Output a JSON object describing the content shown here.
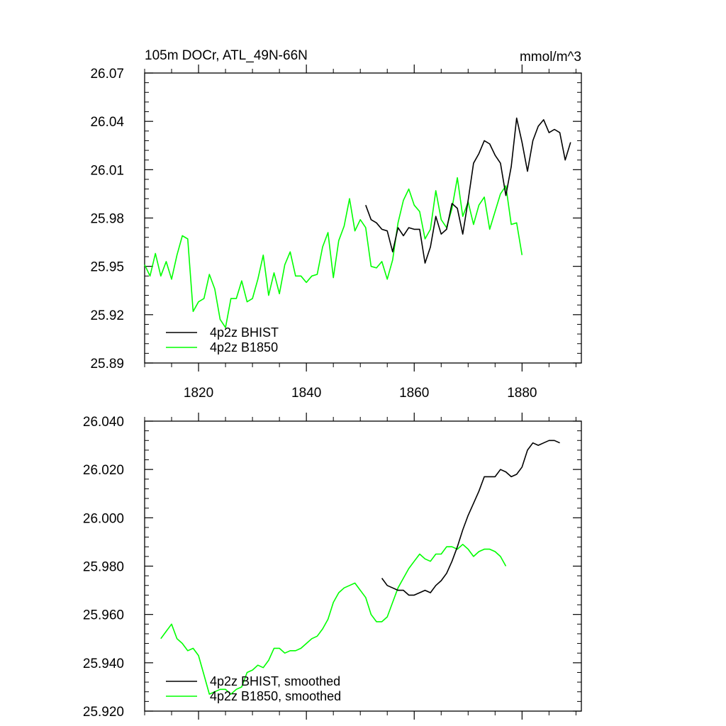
{
  "colors": {
    "bhist": "#000000",
    "b1850": "#00ff00"
  },
  "chart_data": [
    {
      "type": "line",
      "title": "105m DOCr, ATL_49N-66N",
      "units": "mmol/m^3",
      "xlim": [
        1810,
        1891
      ],
      "ylim": [
        25.89,
        26.07
      ],
      "yticks": [
        "25.89",
        "25.92",
        "25.95",
        "25.98",
        "26.01",
        "26.04",
        "26.07"
      ],
      "ytick_values": [
        25.89,
        25.92,
        25.95,
        25.98,
        26.01,
        26.04,
        26.07
      ],
      "xticks": [
        "1820",
        "1840",
        "1860",
        "1880"
      ],
      "xtick_values": [
        1820,
        1840,
        1860,
        1880
      ],
      "legend": [
        "4p2z BHIST",
        "4p2z B1850"
      ],
      "series": [
        {
          "name": "4p2z BHIST",
          "color": "bhist",
          "x": [
            1851,
            1852,
            1853,
            1854,
            1855,
            1856,
            1857,
            1858,
            1859,
            1860,
            1861,
            1862,
            1863,
            1864,
            1865,
            1866,
            1867,
            1868,
            1869,
            1870,
            1871,
            1872,
            1873,
            1874,
            1875,
            1876,
            1877,
            1878,
            1879,
            1880,
            1881,
            1882,
            1883,
            1884,
            1885,
            1886,
            1887,
            1888,
            1889
          ],
          "values": [
            25.988,
            25.979,
            25.977,
            25.973,
            25.972,
            25.959,
            25.974,
            25.969,
            25.974,
            25.973,
            25.973,
            25.952,
            25.962,
            25.981,
            25.97,
            25.973,
            25.989,
            25.986,
            25.97,
            25.991,
            26.014,
            26.02,
            26.028,
            26.026,
            26.019,
            26.014,
            25.994,
            26.012,
            26.042,
            26.027,
            26.009,
            26.028,
            26.037,
            26.041,
            26.033,
            26.035,
            26.033,
            26.016,
            26.027
          ]
        },
        {
          "name": "4p2z B1850",
          "color": "b1850",
          "x": [
            1810,
            1811,
            1812,
            1813,
            1814,
            1815,
            1816,
            1817,
            1818,
            1819,
            1820,
            1821,
            1822,
            1823,
            1824,
            1825,
            1826,
            1827,
            1828,
            1829,
            1830,
            1831,
            1832,
            1833,
            1834,
            1835,
            1836,
            1837,
            1838,
            1839,
            1840,
            1841,
            1842,
            1843,
            1844,
            1845,
            1846,
            1847,
            1848,
            1849,
            1850,
            1851,
            1852,
            1853,
            1854,
            1855,
            1856,
            1857,
            1858,
            1859,
            1860,
            1861,
            1862,
            1863,
            1864,
            1865,
            1866,
            1867,
            1868,
            1869,
            1870,
            1871,
            1872,
            1873,
            1874,
            1875,
            1876,
            1877,
            1878,
            1879,
            1880
          ],
          "values": [
            25.951,
            25.944,
            25.958,
            25.944,
            25.953,
            25.942,
            25.957,
            25.969,
            25.967,
            25.922,
            25.928,
            25.93,
            25.945,
            25.936,
            25.917,
            25.912,
            25.93,
            25.93,
            25.941,
            25.928,
            25.93,
            25.942,
            25.957,
            25.932,
            25.946,
            25.933,
            25.951,
            25.959,
            25.944,
            25.944,
            25.94,
            25.944,
            25.945,
            25.962,
            25.971,
            25.943,
            25.966,
            25.975,
            25.992,
            25.972,
            25.979,
            25.974,
            25.95,
            25.949,
            25.953,
            25.942,
            25.954,
            25.977,
            25.991,
            25.998,
            25.988,
            25.984,
            25.967,
            25.973,
            25.997,
            25.979,
            25.974,
            25.986,
            26.005,
            25.981,
            25.99,
            25.976,
            25.988,
            25.993,
            25.973,
            25.984,
            25.995,
            26.0,
            25.976,
            25.977,
            25.957
          ]
        }
      ]
    },
    {
      "type": "line",
      "title": "",
      "xlim": [
        1810,
        1891
      ],
      "ylim": [
        25.92,
        26.04
      ],
      "yticks": [
        "25.920",
        "25.940",
        "25.960",
        "25.980",
        "26.000",
        "26.020",
        "26.040"
      ],
      "ytick_values": [
        25.92,
        25.94,
        25.96,
        25.98,
        26.0,
        26.02,
        26.04
      ],
      "xtick_values": [
        1820,
        1840,
        1860,
        1880
      ],
      "legend": [
        "4p2z BHIST, smoothed",
        "4p2z B1850, smoothed"
      ],
      "series": [
        {
          "name": "4p2z BHIST, smoothed",
          "color": "bhist",
          "x": [
            1854,
            1855,
            1856,
            1857,
            1858,
            1859,
            1860,
            1861,
            1862,
            1863,
            1864,
            1865,
            1866,
            1867,
            1868,
            1869,
            1870,
            1871,
            1872,
            1873,
            1874,
            1875,
            1876,
            1877,
            1878,
            1879,
            1880,
            1881,
            1882,
            1883,
            1884,
            1885,
            1886,
            1887
          ],
          "values": [
            25.975,
            25.972,
            25.971,
            25.97,
            25.97,
            25.968,
            25.968,
            25.969,
            25.97,
            25.969,
            25.972,
            25.974,
            25.977,
            25.982,
            25.988,
            25.995,
            26.001,
            26.006,
            26.011,
            26.017,
            26.017,
            26.017,
            26.02,
            26.019,
            26.017,
            26.018,
            26.021,
            26.028,
            26.031,
            26.03,
            26.031,
            26.032,
            26.032,
            26.031
          ]
        },
        {
          "name": "4p2z B1850, smoothed",
          "color": "b1850",
          "x": [
            1813,
            1814,
            1815,
            1816,
            1817,
            1818,
            1819,
            1820,
            1821,
            1822,
            1823,
            1824,
            1825,
            1826,
            1827,
            1828,
            1829,
            1830,
            1831,
            1832,
            1833,
            1834,
            1835,
            1836,
            1837,
            1838,
            1839,
            1840,
            1841,
            1842,
            1843,
            1844,
            1845,
            1846,
            1847,
            1848,
            1849,
            1850,
            1851,
            1852,
            1853,
            1854,
            1855,
            1856,
            1857,
            1858,
            1859,
            1860,
            1861,
            1862,
            1863,
            1864,
            1865,
            1866,
            1867,
            1868,
            1869,
            1870,
            1871,
            1872,
            1873,
            1874,
            1875,
            1876,
            1877
          ],
          "values": [
            25.95,
            25.953,
            25.956,
            25.95,
            25.948,
            25.945,
            25.946,
            25.943,
            25.935,
            25.927,
            25.928,
            25.929,
            25.929,
            25.927,
            25.929,
            25.93,
            25.936,
            25.937,
            25.939,
            25.938,
            25.941,
            25.946,
            25.946,
            25.944,
            25.945,
            25.945,
            25.946,
            25.948,
            25.95,
            25.951,
            25.954,
            25.958,
            25.965,
            25.969,
            25.971,
            25.972,
            25.973,
            25.97,
            25.967,
            25.96,
            25.957,
            25.957,
            25.959,
            25.965,
            25.971,
            25.975,
            25.979,
            25.982,
            25.985,
            25.983,
            25.982,
            25.985,
            25.985,
            25.988,
            25.988,
            25.987,
            25.989,
            25.987,
            25.984,
            25.986,
            25.987,
            25.987,
            25.986,
            25.984,
            25.98
          ]
        }
      ]
    }
  ]
}
